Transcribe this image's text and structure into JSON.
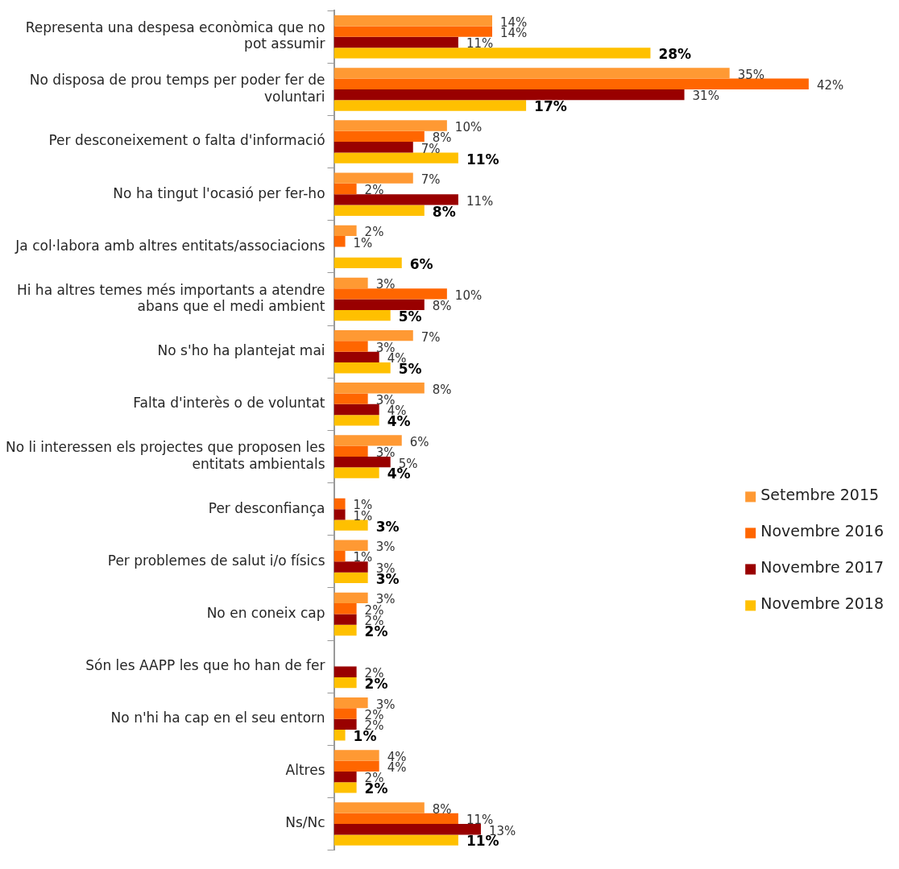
{
  "chart_data": {
    "type": "bar",
    "orientation": "horizontal",
    "categories": [
      "Representa una despesa econòmica que no pot assumir",
      "No disposa de prou temps per poder fer de voluntari",
      "Per desconeixement o falta d'informació",
      "No ha tingut l'ocasió per fer-ho",
      "Ja col·labora amb altres entitats/associacions",
      "Hi ha altres temes més importants a atendre abans que el medi ambient",
      "No s'ho ha plantejat mai",
      "Falta d'interès o de voluntat",
      "No li interessen els projectes que proposen les entitats ambientals",
      "Per desconfiança",
      "Per problemes de salut i/o físics",
      "No en coneix cap",
      "Són les AAPP les que ho han de fer",
      "No n'hi ha cap en el seu entorn",
      "Altres",
      "Ns/Nc"
    ],
    "series": [
      {
        "name": "Setembre 2015",
        "color": "#ff9933",
        "values": [
          14,
          35,
          10,
          7,
          2,
          3,
          7,
          8,
          6,
          null,
          3,
          3,
          null,
          3,
          4,
          8
        ],
        "value_labels": [
          "14%",
          "35%",
          "10%",
          "7%",
          "2%",
          "3%",
          "7%",
          "8%",
          "6%",
          null,
          "3%",
          "3%",
          null,
          "3%",
          "4%",
          "8%"
        ]
      },
      {
        "name": "Novembre 2016",
        "color": "#ff6600",
        "values": [
          14,
          42,
          8,
          2,
          1,
          10,
          3,
          3,
          3,
          1,
          1,
          2,
          null,
          2,
          4,
          11
        ],
        "value_labels": [
          "14%",
          "42%",
          "8%",
          "2%",
          "1%",
          "10%",
          "3%",
          "3%",
          "3%",
          "1%",
          "1%",
          "2%",
          null,
          "2%",
          "4%",
          "11%"
        ]
      },
      {
        "name": "Novembre 2017",
        "color": "#990000",
        "values": [
          11,
          31,
          7,
          11,
          null,
          8,
          4,
          4,
          5,
          1,
          3,
          2,
          2,
          2,
          2,
          13
        ],
        "value_labels": [
          "11%",
          "31%",
          "7%",
          "11%",
          null,
          "8%",
          "4%",
          "4%",
          "5%",
          "1%",
          "3%",
          "2%",
          "2%",
          "2%",
          "2%",
          "13%"
        ]
      },
      {
        "name": "Novembre 2018",
        "color": "#ffc000",
        "values": [
          28,
          17,
          11,
          8,
          6,
          5,
          5,
          4,
          4,
          3,
          3,
          2,
          2,
          1,
          2,
          11
        ],
        "value_labels": [
          "28%",
          "17%",
          "11%",
          "8%",
          "6%",
          "5%",
          "5%",
          "4%",
          "4%",
          "3%",
          "3%",
          "2%",
          "2%",
          "1%",
          "2%",
          "11%"
        ]
      }
    ],
    "legend": "right"
  }
}
